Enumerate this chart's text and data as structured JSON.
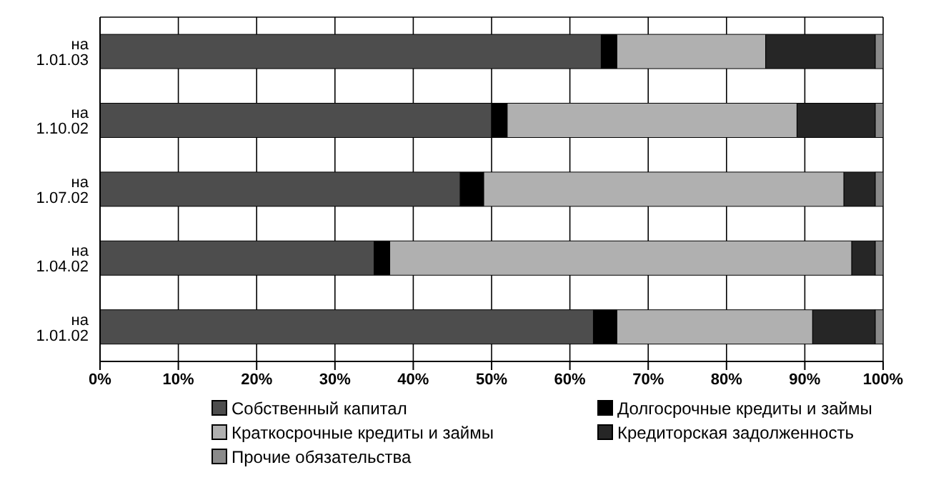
{
  "chart_data": {
    "type": "bar",
    "orientation": "horizontal",
    "stacked": true,
    "categories": [
      "на 1.01.03",
      "на 1.10.02",
      "на 1.07.02",
      "на 1.04.02",
      "на 1.01.02"
    ],
    "series": [
      {
        "name": "Собственный капитал",
        "color": "#4d4d4d",
        "values": [
          64,
          50,
          46,
          35,
          63
        ]
      },
      {
        "name": "Долгосрочные кредиты и займы",
        "color": "#000000",
        "values": [
          2,
          2,
          3,
          2,
          3
        ]
      },
      {
        "name": "Краткосрочные кредиты и займы",
        "color": "#b0b0b0",
        "values": [
          19,
          37,
          46,
          59,
          25
        ]
      },
      {
        "name": "Кредиторская задолженность",
        "color": "#262626",
        "values": [
          14,
          10,
          4,
          3,
          8
        ]
      },
      {
        "name": "Прочие обязательства",
        "color": "#8a8a8a",
        "values": [
          1,
          1,
          1,
          1,
          1
        ]
      }
    ],
    "xlim": [
      0,
      100
    ],
    "xticks": [
      {
        "value": 0,
        "label": "0%"
      },
      {
        "value": 10,
        "label": "10%"
      },
      {
        "value": 20,
        "label": "20%"
      },
      {
        "value": 30,
        "label": "30%"
      },
      {
        "value": 40,
        "label": "40%"
      },
      {
        "value": 50,
        "label": "50%"
      },
      {
        "value": 60,
        "label": "60%"
      },
      {
        "value": 70,
        "label": "70%"
      },
      {
        "value": 80,
        "label": "80%"
      },
      {
        "value": 90,
        "label": "90%"
      },
      {
        "value": 100,
        "label": "100%"
      }
    ],
    "grid": true,
    "legend": "bottom"
  }
}
